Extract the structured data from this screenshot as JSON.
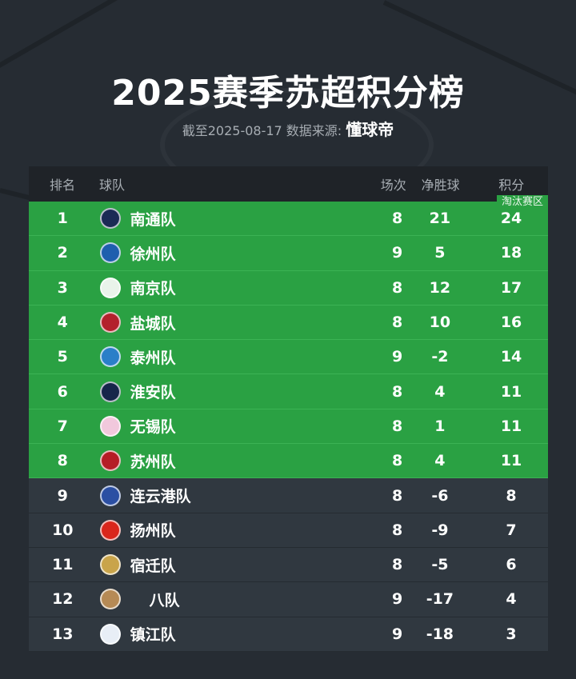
{
  "title": "2025赛季苏超积分榜",
  "subtitle": {
    "prefix": "截至2025-08-17 数据来源:",
    "source": "懂球帝"
  },
  "table": {
    "headers": {
      "rank": "排名",
      "team": "球队",
      "games": "场次",
      "goal_diff": "净胜球",
      "points": "积分"
    },
    "zone_label": "淘汰赛区",
    "colors": {
      "qualified": "#2aa143",
      "other": "#303840"
    },
    "rows": [
      {
        "rank": "1",
        "team": "南通队",
        "games": "8",
        "goal_diff": "21",
        "points": "24",
        "logo_color": "#1b2a55",
        "qualified": true
      },
      {
        "rank": "2",
        "team": "徐州队",
        "games": "9",
        "goal_diff": "5",
        "points": "18",
        "logo_color": "#1f5fae",
        "qualified": true
      },
      {
        "rank": "3",
        "team": "南京队",
        "games": "8",
        "goal_diff": "12",
        "points": "17",
        "logo_color": "#e9f3ea",
        "qualified": true
      },
      {
        "rank": "4",
        "team": "盐城队",
        "games": "8",
        "goal_diff": "10",
        "points": "16",
        "logo_color": "#b3212c",
        "qualified": true
      },
      {
        "rank": "5",
        "team": "泰州队",
        "games": "9",
        "goal_diff": "-2",
        "points": "14",
        "logo_color": "#2a7fc8",
        "qualified": true
      },
      {
        "rank": "6",
        "team": "淮安队",
        "games": "8",
        "goal_diff": "4",
        "points": "11",
        "logo_color": "#16264a",
        "qualified": true
      },
      {
        "rank": "7",
        "team": "无锡队",
        "games": "8",
        "goal_diff": "1",
        "points": "11",
        "logo_color": "#f1c8dc",
        "qualified": true
      },
      {
        "rank": "8",
        "team": "苏州队",
        "games": "8",
        "goal_diff": "4",
        "points": "11",
        "logo_color": "#b51d26",
        "qualified": true
      },
      {
        "rank": "9",
        "team": "连云港队",
        "games": "8",
        "goal_diff": "-6",
        "points": "8",
        "logo_color": "#2b4fa3",
        "qualified": false
      },
      {
        "rank": "10",
        "team": "扬州队",
        "games": "8",
        "goal_diff": "-9",
        "points": "7",
        "logo_color": "#d9261c",
        "qualified": false
      },
      {
        "rank": "11",
        "team": "宿迁队",
        "games": "8",
        "goal_diff": "-5",
        "points": "6",
        "logo_color": "#c9a44a",
        "qualified": false
      },
      {
        "rank": "12",
        "team": "八队",
        "games": "9",
        "goal_diff": "-17",
        "points": "4",
        "logo_color": "#b68a55",
        "qualified": false
      },
      {
        "rank": "13",
        "team": "镇江队",
        "games": "9",
        "goal_diff": "-18",
        "points": "3",
        "logo_color": "#e8eef6",
        "qualified": false
      }
    ]
  }
}
